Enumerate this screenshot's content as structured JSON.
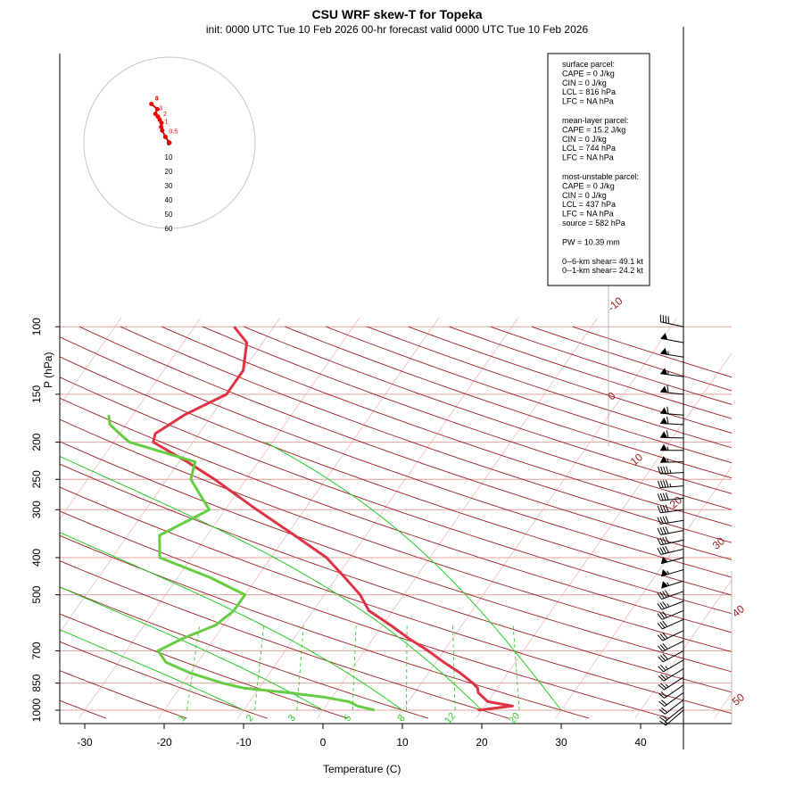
{
  "chart_data": {
    "type": "line",
    "title": "CSU WRF skew-T for Topeka",
    "subtitle": "init: 0000 UTC Tue 10 Feb 2026     00-hr forecast valid 0000 UTC Tue 10 Feb 2026",
    "xlabel": "Temperature (C)",
    "ylabel": "P (hPa)",
    "x_ticks": [
      -30,
      -20,
      -10,
      0,
      10,
      20,
      30,
      40
    ],
    "y_ticks": [
      100,
      150,
      200,
      250,
      300,
      400,
      500,
      700,
      850,
      1000
    ],
    "isotherm_labels": [
      -10,
      0,
      10,
      20,
      30,
      40,
      50
    ],
    "mixing_ratio_labels": [
      1,
      2,
      3,
      5,
      8,
      12,
      20
    ],
    "series": [
      {
        "name": "temperature",
        "color": "#dd3344",
        "points": [
          [
            1000,
            19.5
          ],
          [
            975,
            23.5
          ],
          [
            950,
            20
          ],
          [
            925,
            19
          ],
          [
            900,
            18
          ],
          [
            875,
            17.5
          ],
          [
            850,
            16.5
          ],
          [
            800,
            14
          ],
          [
            750,
            11
          ],
          [
            700,
            8
          ],
          [
            650,
            4.5
          ],
          [
            600,
            1
          ],
          [
            550,
            -3
          ],
          [
            500,
            -5.5
          ],
          [
            450,
            -9
          ],
          [
            400,
            -13
          ],
          [
            350,
            -19
          ],
          [
            300,
            -26
          ],
          [
            250,
            -34
          ],
          [
            225,
            -39
          ],
          [
            200,
            -45
          ],
          [
            190,
            -45.5
          ],
          [
            170,
            -43.5
          ],
          [
            150,
            -40
          ],
          [
            130,
            -40
          ],
          [
            110,
            -42
          ],
          [
            100,
            -45
          ]
        ]
      },
      {
        "name": "dewpoint",
        "color": "#66cc44",
        "points": [
          [
            1000,
            6.5
          ],
          [
            975,
            4
          ],
          [
            950,
            2.5
          ],
          [
            925,
            -1
          ],
          [
            900,
            -6
          ],
          [
            875,
            -12
          ],
          [
            850,
            -15
          ],
          [
            800,
            -20
          ],
          [
            750,
            -24
          ],
          [
            700,
            -26
          ],
          [
            650,
            -24
          ],
          [
            600,
            -21
          ],
          [
            550,
            -20
          ],
          [
            500,
            -20
          ],
          [
            450,
            -26
          ],
          [
            400,
            -34
          ],
          [
            350,
            -36
          ],
          [
            300,
            -32
          ],
          [
            250,
            -37
          ],
          [
            225,
            -38
          ],
          [
            200,
            -48
          ],
          [
            190,
            -50
          ],
          [
            180,
            -52
          ],
          [
            170,
            -53
          ]
        ]
      }
    ],
    "hodograph": {
      "rings": [
        0,
        10,
        20,
        30,
        40,
        50,
        60
      ],
      "points": [
        [
          0,
          0
        ],
        [
          1,
          35
        ],
        [
          2,
          31
        ],
        [
          2.5,
          28
        ],
        [
          3,
          22
        ],
        [
          3.5,
          23
        ],
        [
          4,
          24
        ],
        [
          4.5,
          26
        ],
        [
          5,
          20
        ],
        [
          6,
          25
        ]
      ],
      "labels": [
        "0.5",
        "1",
        "2",
        "3",
        "4",
        "6"
      ]
    },
    "parcel_info": {
      "surface": [
        "surface parcel:",
        "CAPE = 0 J/kg",
        "CIN = 0 J/kg",
        "LCL = 816 hPa",
        "LFC = NA hPa"
      ],
      "mixed": [
        "mean-layer parcel:",
        "CAPE = 15.2 J/kg",
        "CIN = 0 J/kg",
        "LCL = 744 hPa",
        "LFC = NA hPa"
      ],
      "unstable": [
        "most-unstable parcel:",
        "CAPE = 0 J/kg",
        "CIN = 0 J/kg",
        "LCL = 437 hPa",
        "LFC = NA hPa",
        "source = 582 hPa"
      ],
      "pw": "PW =  10.39 mm",
      "shear": [
        "0--6-km shear= 49.1 kt",
        "0--1-km shear= 24.2 kt"
      ]
    },
    "wind_barbs": [
      {
        "p": 100,
        "speed": 40
      },
      {
        "p": 110,
        "speed": 50
      },
      {
        "p": 120,
        "speed": 55
      },
      {
        "p": 135,
        "speed": 55
      },
      {
        "p": 150,
        "speed": 60
      },
      {
        "p": 170,
        "speed": 60
      },
      {
        "p": 180,
        "speed": 60
      },
      {
        "p": 195,
        "speed": 60
      },
      {
        "p": 210,
        "speed": 55
      },
      {
        "p": 225,
        "speed": 55
      },
      {
        "p": 240,
        "speed": 45
      },
      {
        "p": 260,
        "speed": 45
      },
      {
        "p": 280,
        "speed": 40
      },
      {
        "p": 300,
        "speed": 40
      },
      {
        "p": 320,
        "speed": 40
      },
      {
        "p": 340,
        "speed": 40
      },
      {
        "p": 360,
        "speed": 40
      },
      {
        "p": 380,
        "speed": 40
      },
      {
        "p": 400,
        "speed": 50
      },
      {
        "p": 430,
        "speed": 55
      },
      {
        "p": 460,
        "speed": 55
      },
      {
        "p": 490,
        "speed": 40
      },
      {
        "p": 520,
        "speed": 35
      },
      {
        "p": 550,
        "speed": 30
      },
      {
        "p": 580,
        "speed": 30
      },
      {
        "p": 620,
        "speed": 30
      },
      {
        "p": 660,
        "speed": 30
      },
      {
        "p": 700,
        "speed": 30
      },
      {
        "p": 740,
        "speed": 25
      },
      {
        "p": 780,
        "speed": 25
      },
      {
        "p": 820,
        "speed": 25
      },
      {
        "p": 860,
        "speed": 20
      },
      {
        "p": 900,
        "speed": 20
      },
      {
        "p": 940,
        "speed": 20
      },
      {
        "p": 980,
        "speed": 20
      },
      {
        "p": 1000,
        "speed": 15
      }
    ]
  }
}
